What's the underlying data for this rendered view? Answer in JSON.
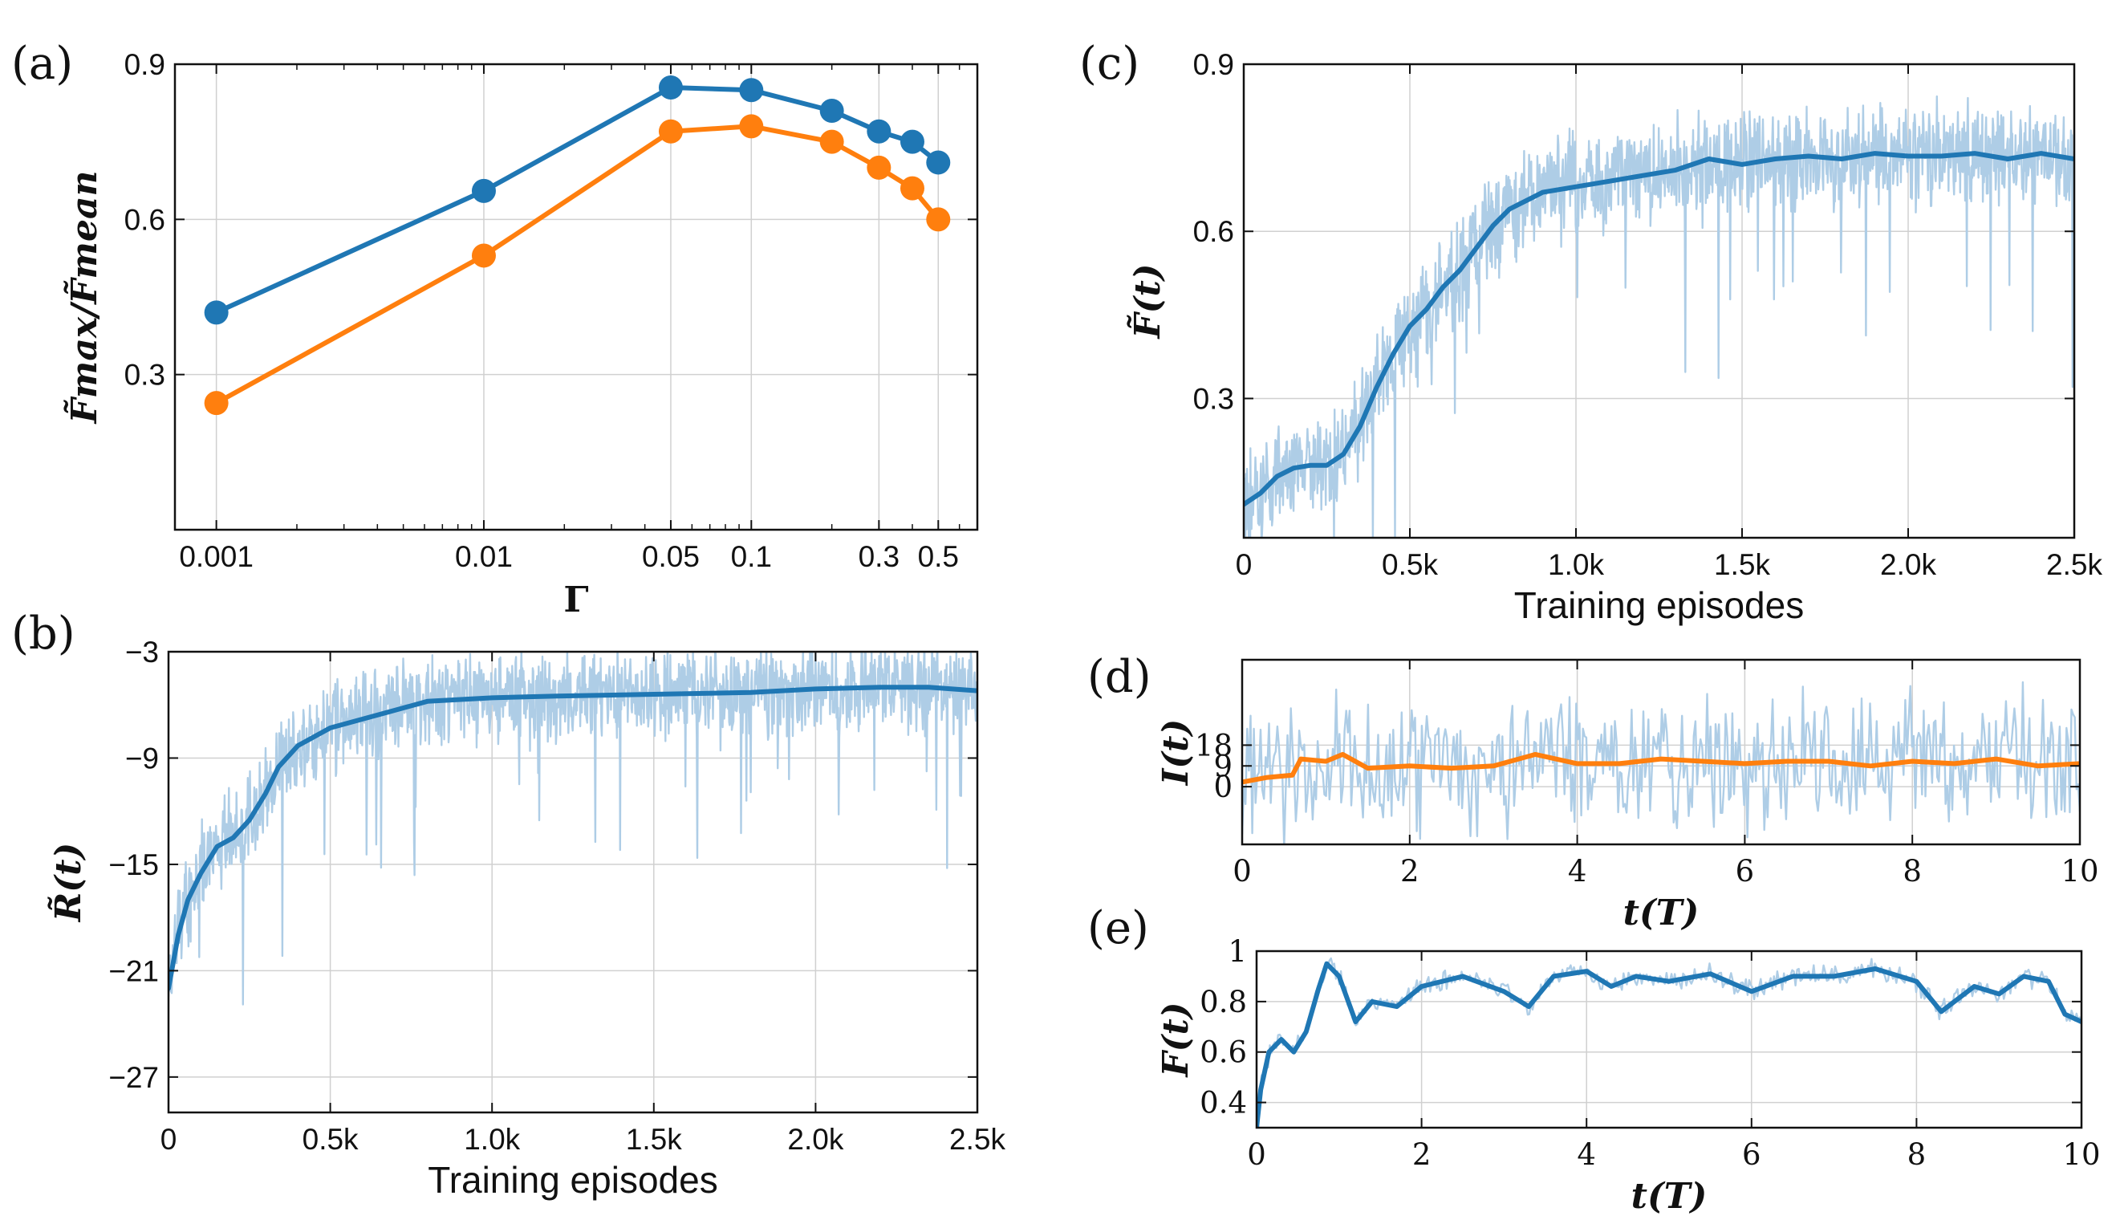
{
  "colors": {
    "blue": "#1f77b4",
    "orange": "#ff7f0e",
    "light_blue": "#aecde6",
    "grid": "#d0d0d0"
  },
  "chart_data": [
    {
      "id": "a",
      "panel_label": "(a)",
      "type": "line",
      "xscale": "log",
      "xlim": [
        0.0007,
        0.7
      ],
      "ylim": [
        0.0,
        0.9
      ],
      "x": [
        0.001,
        0.01,
        0.05,
        0.1,
        0.2,
        0.3,
        0.4,
        0.5
      ],
      "xticks": [
        0.001,
        0.01,
        0.05,
        0.1,
        0.3,
        0.5
      ],
      "xtick_labels": [
        "0.001",
        "0.01",
        "0.05",
        "0.1",
        "0.3",
        "0.5"
      ],
      "yticks": [
        0.3,
        0.6,
        0.9
      ],
      "ytick_labels": [
        "0.3",
        "0.6",
        "0.9"
      ],
      "xlabel": "Γ",
      "ylabel": "F̃max/F̃mean",
      "grid": true,
      "markers": true,
      "series": [
        {
          "color": "#1f77b4",
          "values": [
            0.42,
            0.655,
            0.855,
            0.85,
            0.81,
            0.77,
            0.75,
            0.71
          ]
        },
        {
          "color": "#ff7f0e",
          "values": [
            0.245,
            0.53,
            0.77,
            0.78,
            0.75,
            0.7,
            0.66,
            0.6
          ]
        }
      ]
    },
    {
      "id": "b",
      "panel_label": "(b)",
      "type": "line",
      "xlim": [
        0,
        2500
      ],
      "ylim": [
        -29,
        -3
      ],
      "xticks": [
        0,
        500,
        1000,
        1500,
        2000,
        2500
      ],
      "xtick_labels": [
        "0",
        "0.5k",
        "1.0k",
        "1.5k",
        "2.0k",
        "2.5k"
      ],
      "yticks": [
        -3,
        -9,
        -15,
        -21,
        -27
      ],
      "ytick_labels": [
        "−3",
        "−9",
        "−15",
        "−21",
        "−27"
      ],
      "xlabel": "Training episodes",
      "ylabel": "R̃(t)",
      "grid": true,
      "raw_series": {
        "color": "#aecde6",
        "n_points": 1500,
        "noise_amplitude": 2.5,
        "dips": true
      },
      "smooth_series": {
        "color": "#1f77b4",
        "x": [
          0,
          30,
          60,
          100,
          150,
          200,
          250,
          300,
          340,
          400,
          500,
          600,
          700,
          800,
          1000,
          1200,
          1500,
          1800,
          2000,
          2200,
          2350,
          2500
        ],
        "values": [
          -22,
          -19,
          -17,
          -15.5,
          -14,
          -13.5,
          -12.5,
          -11,
          -9.5,
          -8.3,
          -7.3,
          -6.8,
          -6.3,
          -5.8,
          -5.6,
          -5.5,
          -5.4,
          -5.3,
          -5.1,
          -5.0,
          -5.0,
          -5.2
        ]
      }
    },
    {
      "id": "c",
      "panel_label": "(c)",
      "type": "line",
      "xlim": [
        0,
        2500
      ],
      "ylim": [
        0.05,
        0.9
      ],
      "xticks": [
        0,
        500,
        1000,
        1500,
        2000,
        2500
      ],
      "xtick_labels": [
        "0",
        "0.5k",
        "1.0k",
        "1.5k",
        "2.0k",
        "2.5k"
      ],
      "yticks": [
        0.3,
        0.6,
        0.9
      ],
      "ytick_labels": [
        "0.3",
        "0.6",
        "0.9"
      ],
      "xlabel": "Training episodes",
      "ylabel": "F̃(t)",
      "grid": true,
      "raw_series": {
        "color": "#aecde6",
        "n_points": 1500,
        "noise_amplitude": 0.09,
        "dips": true
      },
      "smooth_series": {
        "color": "#1f77b4",
        "x": [
          0,
          50,
          100,
          150,
          200,
          250,
          300,
          350,
          400,
          450,
          500,
          550,
          600,
          650,
          700,
          750,
          800,
          900,
          1000,
          1100,
          1200,
          1300,
          1400,
          1500,
          1600,
          1700,
          1800,
          1900,
          2000,
          2100,
          2200,
          2300,
          2400,
          2500
        ],
        "values": [
          0.11,
          0.13,
          0.16,
          0.175,
          0.18,
          0.18,
          0.2,
          0.25,
          0.32,
          0.38,
          0.43,
          0.46,
          0.5,
          0.53,
          0.57,
          0.61,
          0.64,
          0.67,
          0.68,
          0.69,
          0.7,
          0.71,
          0.73,
          0.72,
          0.73,
          0.735,
          0.73,
          0.74,
          0.735,
          0.735,
          0.74,
          0.73,
          0.74,
          0.73
        ]
      }
    },
    {
      "id": "d",
      "panel_label": "(d)",
      "type": "line",
      "xlim": [
        0,
        10
      ],
      "ylim": [
        -25,
        55
      ],
      "xticks": [
        0,
        2,
        4,
        6,
        8,
        10
      ],
      "xtick_labels": [
        "0",
        "2",
        "4",
        "6",
        "8",
        "10"
      ],
      "yticks": [
        0,
        9,
        18
      ],
      "ytick_labels": [
        "0",
        "9",
        "18"
      ],
      "xlabel": "t(T)",
      "ylabel": "I(t)",
      "grid": true,
      "raw_series": {
        "color": "#aecde6",
        "n_points": 500,
        "noise_amplitude": 30
      },
      "smooth_series": {
        "color": "#ff7f0e",
        "x": [
          0,
          0.3,
          0.6,
          0.7,
          1.0,
          1.2,
          1.5,
          2.0,
          2.5,
          3.0,
          3.5,
          4.0,
          4.5,
          5.0,
          5.5,
          6.0,
          6.5,
          7.0,
          7.5,
          8.0,
          8.5,
          9.0,
          9.5,
          10.0
        ],
        "values": [
          2,
          4,
          5,
          12,
          11,
          14,
          8,
          9,
          8,
          9,
          14,
          10,
          10,
          12,
          11,
          10,
          11,
          11,
          9,
          11,
          10,
          12,
          9,
          10
        ]
      }
    },
    {
      "id": "e",
      "panel_label": "(e)",
      "type": "line",
      "xlim": [
        0,
        10
      ],
      "ylim": [
        0.3,
        1.0
      ],
      "xticks": [
        0,
        2,
        4,
        6,
        8,
        10
      ],
      "xtick_labels": [
        "0",
        "2",
        "4",
        "6",
        "8",
        "10"
      ],
      "yticks": [
        0.4,
        0.6,
        0.8,
        1.0
      ],
      "ytick_labels": [
        "0.4",
        "0.6",
        "0.8",
        "1"
      ],
      "xlabel": "t(T)",
      "ylabel": "F(t)",
      "grid": true,
      "raw_series": {
        "color": "#aecde6",
        "n_points": 500,
        "noise_amplitude": 0.04
      },
      "smooth_series": {
        "color": "#1f77b4",
        "x": [
          0,
          0.05,
          0.15,
          0.3,
          0.45,
          0.6,
          0.75,
          0.85,
          1.0,
          1.2,
          1.4,
          1.7,
          2.0,
          2.5,
          3.0,
          3.3,
          3.6,
          4.0,
          4.3,
          4.6,
          5.0,
          5.5,
          6.0,
          6.5,
          7.0,
          7.5,
          8.0,
          8.3,
          8.7,
          9.0,
          9.3,
          9.6,
          9.8,
          10.0
        ],
        "values": [
          0.3,
          0.45,
          0.6,
          0.65,
          0.6,
          0.68,
          0.85,
          0.95,
          0.9,
          0.72,
          0.8,
          0.78,
          0.86,
          0.9,
          0.84,
          0.78,
          0.9,
          0.92,
          0.86,
          0.9,
          0.88,
          0.91,
          0.84,
          0.9,
          0.9,
          0.93,
          0.88,
          0.76,
          0.86,
          0.83,
          0.9,
          0.88,
          0.75,
          0.72
        ]
      }
    }
  ]
}
